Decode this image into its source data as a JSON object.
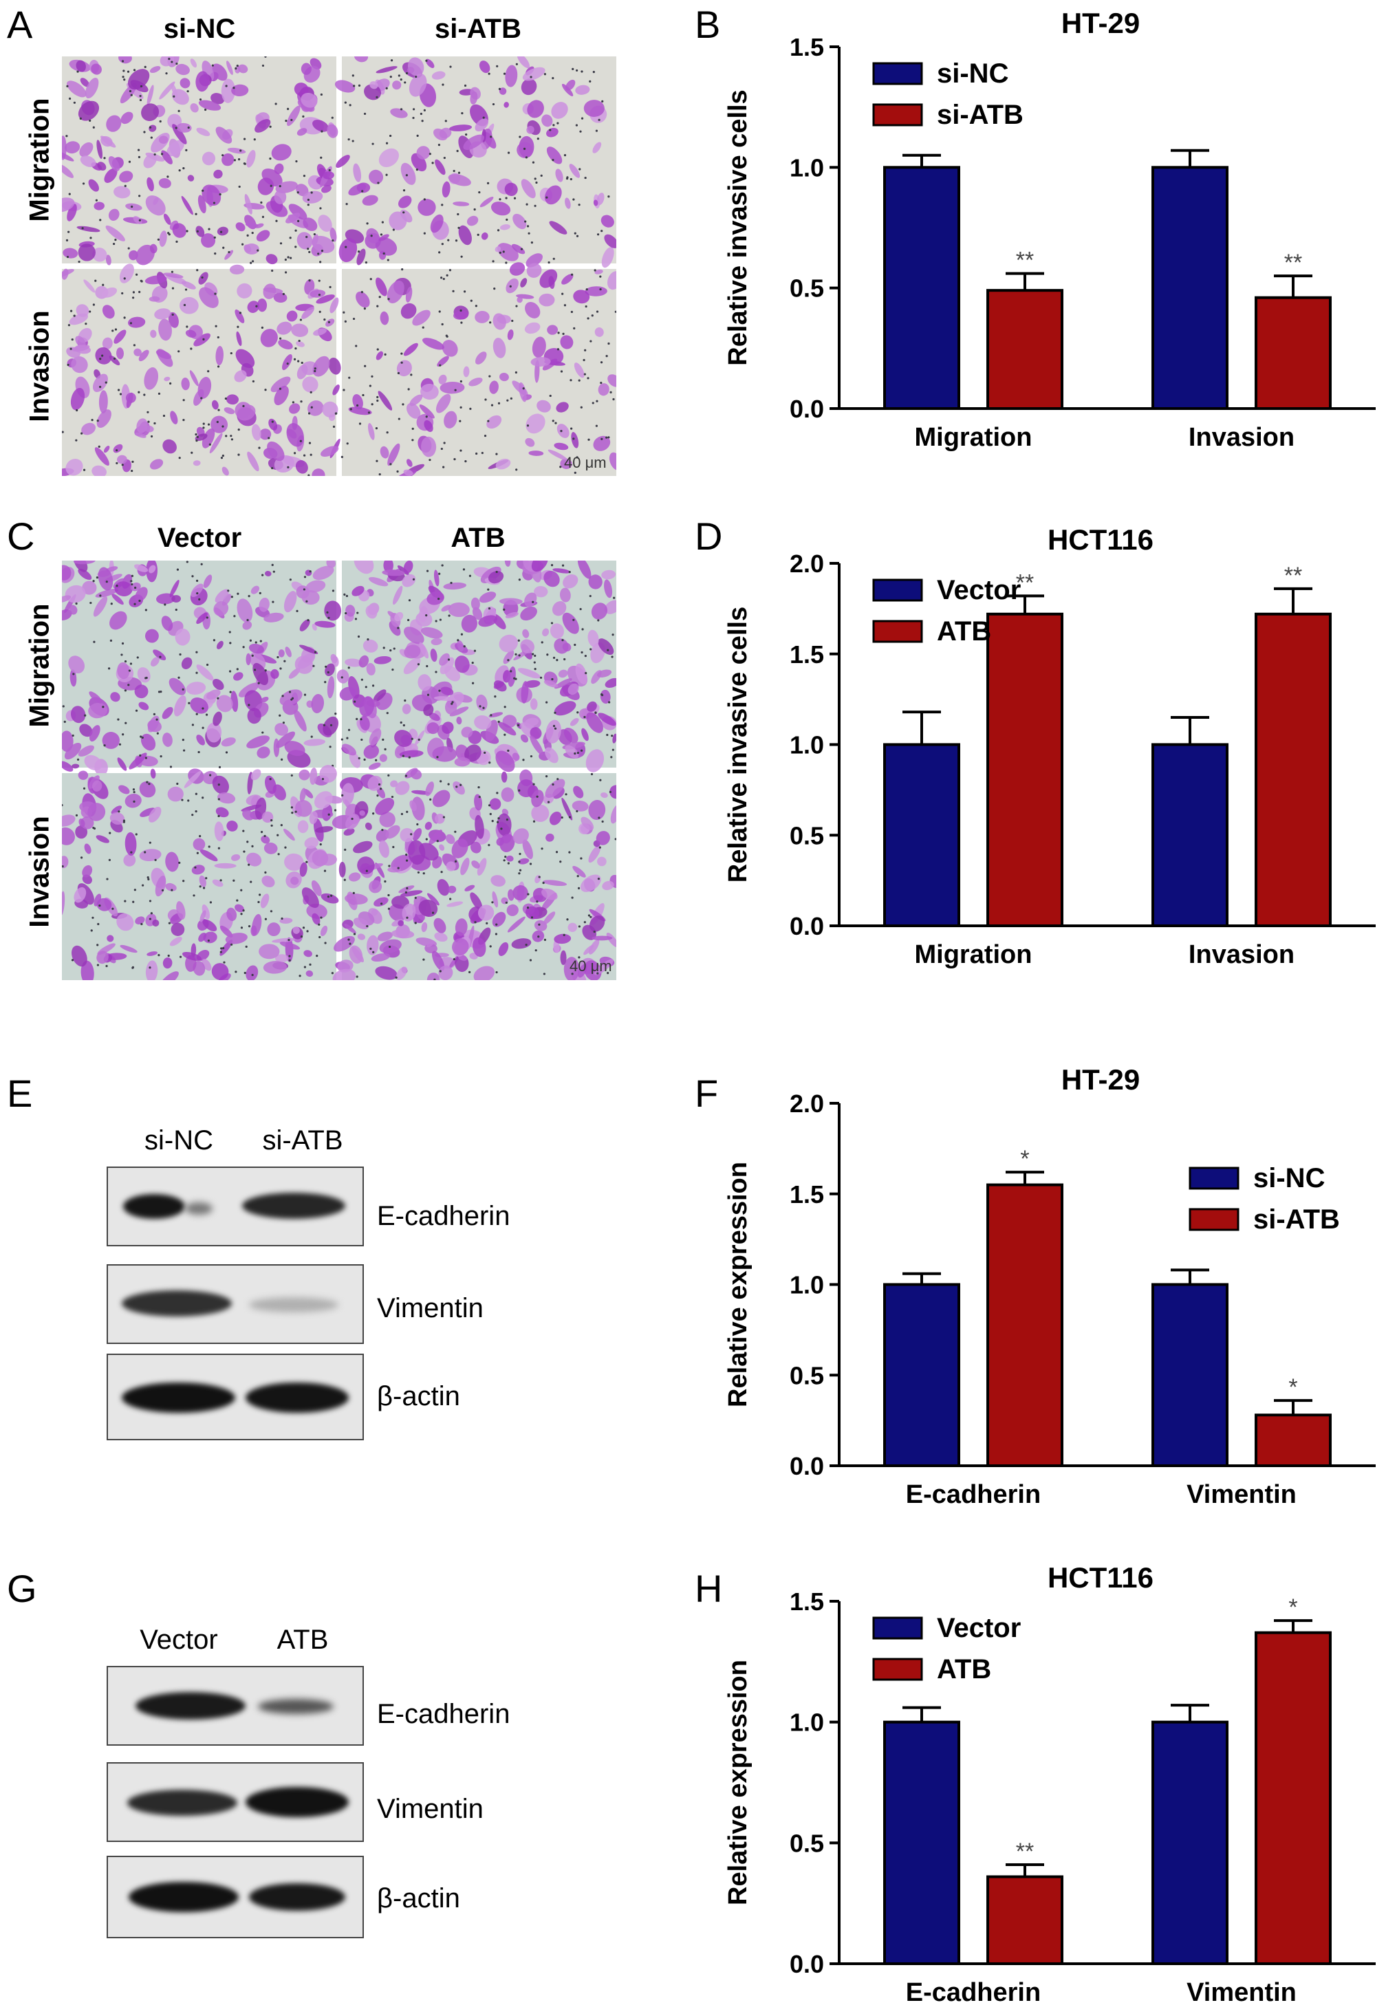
{
  "panels": {
    "A": {
      "letter": "A",
      "columns": [
        "si-NC",
        "si-ATB"
      ],
      "rows": [
        "Migration",
        "Invasion"
      ],
      "scale": "40 μm"
    },
    "C": {
      "letter": "C",
      "columns": [
        "Vector",
        "ATB"
      ],
      "rows": [
        "Migration",
        "Invasion"
      ],
      "scale": "40 μm"
    },
    "E": {
      "letter": "E",
      "columns": [
        "si-NC",
        "si-ATB"
      ],
      "rows": [
        "E-cadherin",
        "Vimentin",
        "β-actin"
      ]
    },
    "G": {
      "letter": "G",
      "columns": [
        "Vector",
        "ATB"
      ],
      "rows": [
        "E-cadherin",
        "Vimentin",
        "β-actin"
      ]
    }
  },
  "colors": {
    "series1": "#0d0d7a",
    "series2": "#a30d0d",
    "stain_purple": "#8a3aa8",
    "stain_bg_A": "#dcdcd6",
    "stain_bg_C": "#c9d6d2"
  },
  "chart_data": [
    {
      "letter": "B",
      "type": "bar",
      "title": "HT-29",
      "xlabel": "",
      "ylabel": "Relative invasive cells",
      "categories": [
        "Migration",
        "Invasion"
      ],
      "series": [
        {
          "name": "si-NC",
          "values": [
            1.0,
            1.0
          ],
          "errors": [
            0.05,
            0.07
          ],
          "sig": [
            "",
            ""
          ]
        },
        {
          "name": "si-ATB",
          "values": [
            0.49,
            0.46
          ],
          "errors": [
            0.07,
            0.09
          ],
          "sig": [
            "**",
            "**"
          ]
        }
      ],
      "ylim": [
        0,
        1.5
      ],
      "yticks": [
        "0.0",
        "0.5",
        "1.0",
        "1.5"
      ],
      "legend": "top-left"
    },
    {
      "letter": "D",
      "type": "bar",
      "title": "HCT116",
      "xlabel": "",
      "ylabel": "Relative invasive cells",
      "categories": [
        "Migration",
        "Invasion"
      ],
      "series": [
        {
          "name": "Vector",
          "values": [
            1.0,
            1.0
          ],
          "errors": [
            0.18,
            0.15
          ],
          "sig": [
            "",
            ""
          ]
        },
        {
          "name": "ATB",
          "values": [
            1.72,
            1.72
          ],
          "errors": [
            0.1,
            0.14
          ],
          "sig": [
            "**",
            "**"
          ]
        }
      ],
      "ylim": [
        0,
        2.0
      ],
      "yticks": [
        "0.0",
        "0.5",
        "1.0",
        "1.5",
        "2.0"
      ],
      "legend": "top-left"
    },
    {
      "letter": "F",
      "type": "bar",
      "title": "HT-29",
      "xlabel": "",
      "ylabel": "Relative expression",
      "categories": [
        "E-cadherin",
        "Vimentin"
      ],
      "series": [
        {
          "name": "si-NC",
          "values": [
            1.0,
            1.0
          ],
          "errors": [
            0.06,
            0.08
          ],
          "sig": [
            "",
            ""
          ]
        },
        {
          "name": "si-ATB",
          "values": [
            1.55,
            0.28
          ],
          "errors": [
            0.07,
            0.08
          ],
          "sig": [
            "*",
            "*"
          ]
        }
      ],
      "ylim": [
        0,
        2.0
      ],
      "yticks": [
        "0.0",
        "0.5",
        "1.0",
        "1.5",
        "2.0"
      ],
      "legend": "top-right"
    },
    {
      "letter": "H",
      "type": "bar",
      "title": "HCT116",
      "xlabel": "",
      "ylabel": "Relative expression",
      "categories": [
        "E-cadherin",
        "Vimentin"
      ],
      "series": [
        {
          "name": "Vector",
          "values": [
            1.0,
            1.0
          ],
          "errors": [
            0.06,
            0.07
          ],
          "sig": [
            "",
            ""
          ]
        },
        {
          "name": "ATB",
          "values": [
            0.36,
            1.37
          ],
          "errors": [
            0.05,
            0.05
          ],
          "sig": [
            "**",
            "*"
          ]
        }
      ],
      "ylim": [
        0,
        1.5
      ],
      "yticks": [
        "0.0",
        "0.5",
        "1.0",
        "1.5"
      ],
      "legend": "top-left"
    }
  ]
}
